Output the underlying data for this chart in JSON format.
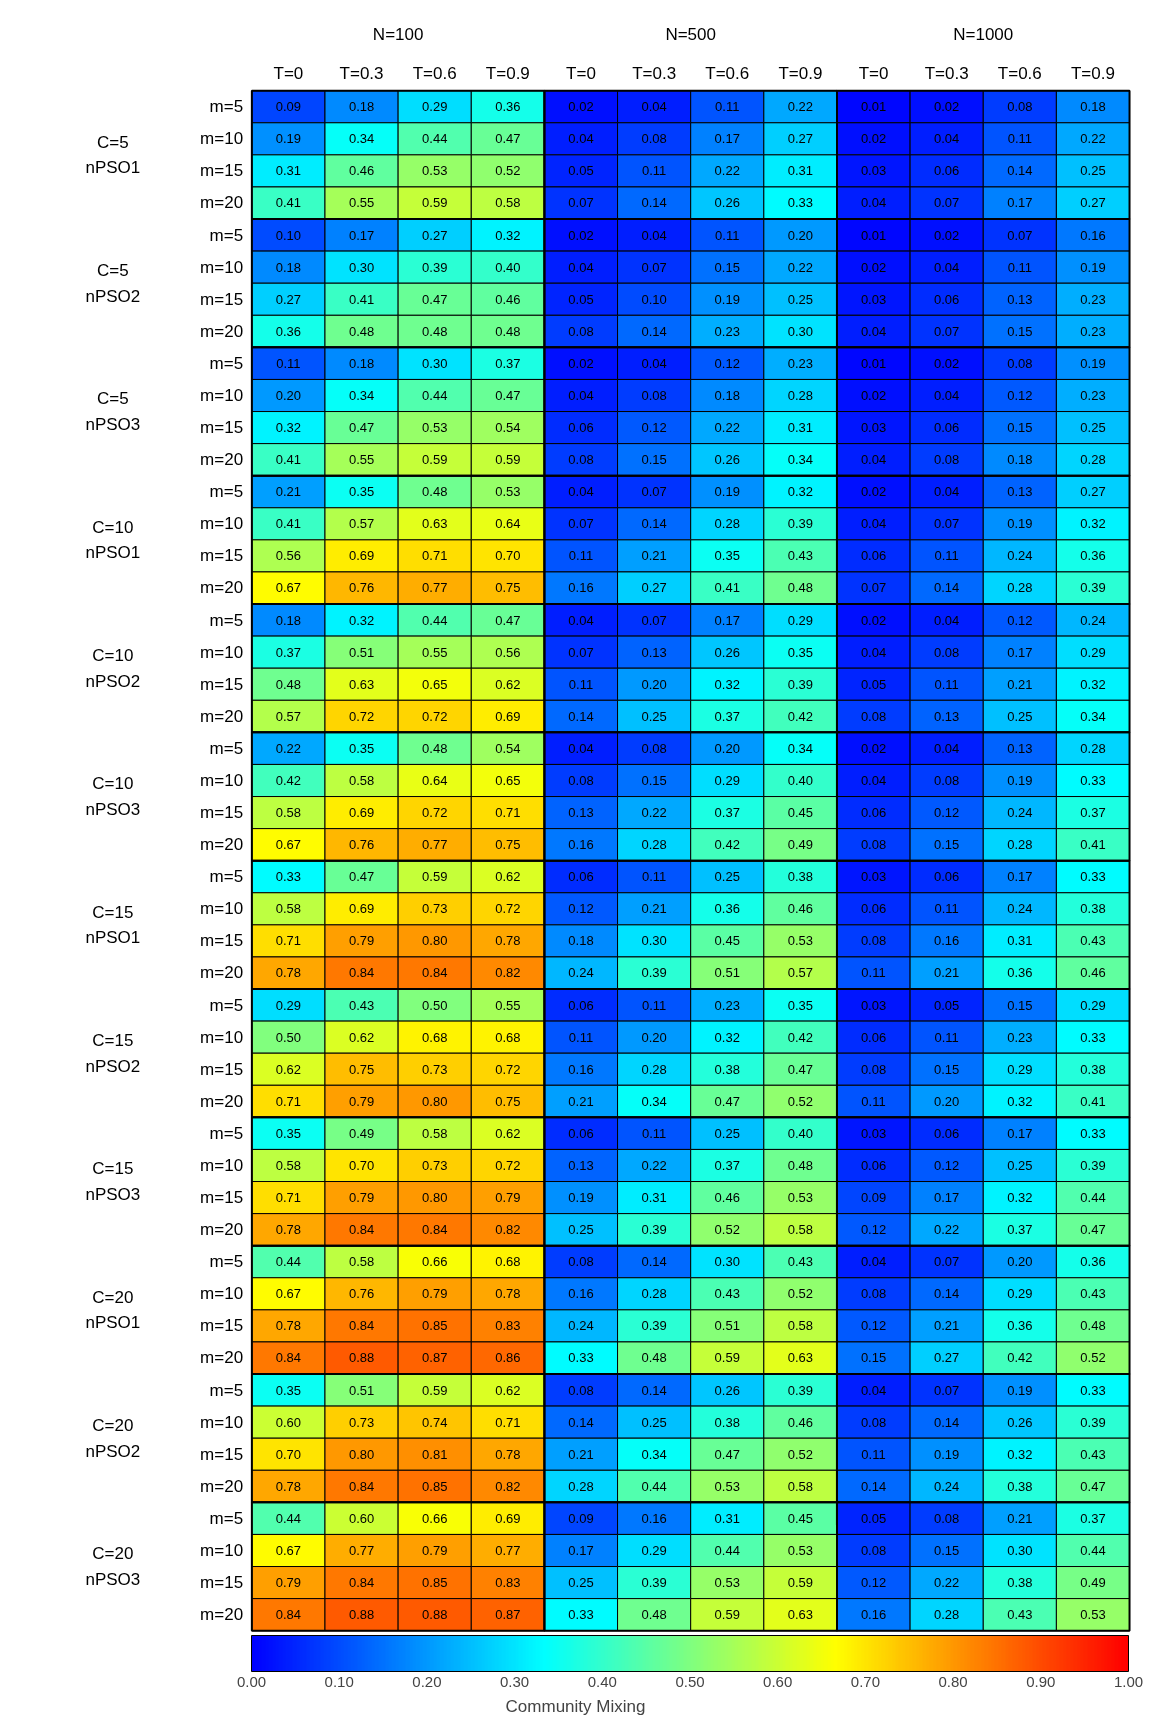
{
  "chart_data": {
    "type": "heatmap",
    "categories": [
      "T=0",
      "T=0.3",
      "T=0.6",
      "T=0.9",
      "T=0",
      "T=0.3",
      "T=0.6",
      "T=0.9",
      "T=0",
      "T=0.3",
      "T=0.6",
      "T=0.9"
    ],
    "y_categories": [
      "m=5",
      "m=10",
      "m=15",
      "m=20",
      "m=5",
      "m=10",
      "m=15",
      "m=20",
      "m=5",
      "m=10",
      "m=15",
      "m=20",
      "m=5",
      "m=10",
      "m=15",
      "m=20",
      "m=5",
      "m=10",
      "m=15",
      "m=20",
      "m=5",
      "m=10",
      "m=15",
      "m=20",
      "m=5",
      "m=10",
      "m=15",
      "m=20",
      "m=5",
      "m=10",
      "m=15",
      "m=20",
      "m=5",
      "m=10",
      "m=15",
      "m=20",
      "m=5",
      "m=10",
      "m=15",
      "m=20",
      "m=5",
      "m=10",
      "m=15",
      "m=20",
      "m=5",
      "m=10",
      "m=15",
      "m=20"
    ],
    "annotations": [
      "N=100",
      "N=500",
      "N=1000",
      "C=5\nnPSO1",
      "C=5\nnPSO2",
      "C=5\nnPSO3",
      "C=10\nnPSO1",
      "C=10\nnPSO2",
      "C=10\nnPSO3",
      "C=15\nnPSO1",
      "C=15\nnPSO2",
      "C=15\nnPSO3",
      "C=20\nnPSO1",
      "C=20\nnPSO2",
      "C=20\nnPSO3"
    ],
    "cells": [
      [
        0.09,
        0.18,
        0.29,
        0.36,
        0.02,
        0.04,
        0.11,
        0.22,
        0.01,
        0.02,
        0.08,
        0.18
      ],
      [
        0.19,
        0.34,
        0.44,
        0.47,
        0.04,
        0.08,
        0.17,
        0.27,
        0.02,
        0.04,
        0.11,
        0.22
      ],
      [
        0.31,
        0.46,
        0.53,
        0.52,
        0.05,
        0.11,
        0.22,
        0.31,
        0.03,
        0.06,
        0.14,
        0.25
      ],
      [
        0.41,
        0.55,
        0.59,
        0.58,
        0.07,
        0.14,
        0.26,
        0.33,
        0.04,
        0.07,
        0.17,
        0.27
      ],
      [
        0.1,
        0.17,
        0.27,
        0.32,
        0.02,
        0.04,
        0.11,
        0.2,
        0.01,
        0.02,
        0.07,
        0.16
      ],
      [
        0.18,
        0.3,
        0.39,
        0.4,
        0.04,
        0.07,
        0.15,
        0.22,
        0.02,
        0.04,
        0.11,
        0.19
      ],
      [
        0.27,
        0.41,
        0.47,
        0.46,
        0.05,
        0.1,
        0.19,
        0.25,
        0.03,
        0.06,
        0.13,
        0.23
      ],
      [
        0.36,
        0.48,
        0.48,
        0.48,
        0.08,
        0.14,
        0.23,
        0.3,
        0.04,
        0.07,
        0.15,
        0.23
      ],
      [
        0.11,
        0.18,
        0.3,
        0.37,
        0.02,
        0.04,
        0.12,
        0.23,
        0.01,
        0.02,
        0.08,
        0.19
      ],
      [
        0.2,
        0.34,
        0.44,
        0.47,
        0.04,
        0.08,
        0.18,
        0.28,
        0.02,
        0.04,
        0.12,
        0.23
      ],
      [
        0.32,
        0.47,
        0.53,
        0.54,
        0.06,
        0.12,
        0.22,
        0.31,
        0.03,
        0.06,
        0.15,
        0.25
      ],
      [
        0.41,
        0.55,
        0.59,
        0.59,
        0.08,
        0.15,
        0.26,
        0.34,
        0.04,
        0.08,
        0.18,
        0.28
      ],
      [
        0.21,
        0.35,
        0.48,
        0.53,
        0.04,
        0.07,
        0.19,
        0.32,
        0.02,
        0.04,
        0.13,
        0.27
      ],
      [
        0.41,
        0.57,
        0.63,
        0.64,
        0.07,
        0.14,
        0.28,
        0.39,
        0.04,
        0.07,
        0.19,
        0.32
      ],
      [
        0.56,
        0.69,
        0.71,
        0.7,
        0.11,
        0.21,
        0.35,
        0.43,
        0.06,
        0.11,
        0.24,
        0.36
      ],
      [
        0.67,
        0.76,
        0.77,
        0.75,
        0.16,
        0.27,
        0.41,
        0.48,
        0.07,
        0.14,
        0.28,
        0.39
      ],
      [
        0.18,
        0.32,
        0.44,
        0.47,
        0.04,
        0.07,
        0.17,
        0.29,
        0.02,
        0.04,
        0.12,
        0.24
      ],
      [
        0.37,
        0.51,
        0.55,
        0.56,
        0.07,
        0.13,
        0.26,
        0.35,
        0.04,
        0.08,
        0.17,
        0.29
      ],
      [
        0.48,
        0.63,
        0.65,
        0.62,
        0.11,
        0.2,
        0.32,
        0.39,
        0.05,
        0.11,
        0.21,
        0.32
      ],
      [
        0.57,
        0.72,
        0.72,
        0.69,
        0.14,
        0.25,
        0.37,
        0.42,
        0.08,
        0.13,
        0.25,
        0.34
      ],
      [
        0.22,
        0.35,
        0.48,
        0.54,
        0.04,
        0.08,
        0.2,
        0.34,
        0.02,
        0.04,
        0.13,
        0.28
      ],
      [
        0.42,
        0.58,
        0.64,
        0.65,
        0.08,
        0.15,
        0.29,
        0.4,
        0.04,
        0.08,
        0.19,
        0.33
      ],
      [
        0.58,
        0.69,
        0.72,
        0.71,
        0.13,
        0.22,
        0.37,
        0.45,
        0.06,
        0.12,
        0.24,
        0.37
      ],
      [
        0.67,
        0.76,
        0.77,
        0.75,
        0.16,
        0.28,
        0.42,
        0.49,
        0.08,
        0.15,
        0.28,
        0.41
      ],
      [
        0.33,
        0.47,
        0.59,
        0.62,
        0.06,
        0.11,
        0.25,
        0.38,
        0.03,
        0.06,
        0.17,
        0.33
      ],
      [
        0.58,
        0.69,
        0.73,
        0.72,
        0.12,
        0.21,
        0.36,
        0.46,
        0.06,
        0.11,
        0.24,
        0.38
      ],
      [
        0.71,
        0.79,
        0.8,
        0.78,
        0.18,
        0.3,
        0.45,
        0.53,
        0.08,
        0.16,
        0.31,
        0.43
      ],
      [
        0.78,
        0.84,
        0.84,
        0.82,
        0.24,
        0.39,
        0.51,
        0.57,
        0.11,
        0.21,
        0.36,
        0.46
      ],
      [
        0.29,
        0.43,
        0.5,
        0.55,
        0.06,
        0.11,
        0.23,
        0.35,
        0.03,
        0.05,
        0.15,
        0.29
      ],
      [
        0.5,
        0.62,
        0.68,
        0.68,
        0.11,
        0.2,
        0.32,
        0.42,
        0.06,
        0.11,
        0.23,
        0.33
      ],
      [
        0.62,
        0.75,
        0.73,
        0.72,
        0.16,
        0.28,
        0.38,
        0.47,
        0.08,
        0.15,
        0.29,
        0.38
      ],
      [
        0.71,
        0.79,
        0.8,
        0.75,
        0.21,
        0.34,
        0.47,
        0.52,
        0.11,
        0.2,
        0.32,
        0.41
      ],
      [
        0.35,
        0.49,
        0.58,
        0.62,
        0.06,
        0.11,
        0.25,
        0.4,
        0.03,
        0.06,
        0.17,
        0.33
      ],
      [
        0.58,
        0.7,
        0.73,
        0.72,
        0.13,
        0.22,
        0.37,
        0.48,
        0.06,
        0.12,
        0.25,
        0.39
      ],
      [
        0.71,
        0.79,
        0.8,
        0.79,
        0.19,
        0.31,
        0.46,
        0.53,
        0.09,
        0.17,
        0.32,
        0.44
      ],
      [
        0.78,
        0.84,
        0.84,
        0.82,
        0.25,
        0.39,
        0.52,
        0.58,
        0.12,
        0.22,
        0.37,
        0.47
      ],
      [
        0.44,
        0.58,
        0.66,
        0.68,
        0.08,
        0.14,
        0.3,
        0.43,
        0.04,
        0.07,
        0.2,
        0.36
      ],
      [
        0.67,
        0.76,
        0.79,
        0.78,
        0.16,
        0.28,
        0.43,
        0.52,
        0.08,
        0.14,
        0.29,
        0.43
      ],
      [
        0.78,
        0.84,
        0.85,
        0.83,
        0.24,
        0.39,
        0.51,
        0.58,
        0.12,
        0.21,
        0.36,
        0.48
      ],
      [
        0.84,
        0.88,
        0.87,
        0.86,
        0.33,
        0.48,
        0.59,
        0.63,
        0.15,
        0.27,
        0.42,
        0.52
      ],
      [
        0.35,
        0.51,
        0.59,
        0.62,
        0.08,
        0.14,
        0.26,
        0.39,
        0.04,
        0.07,
        0.19,
        0.33
      ],
      [
        0.6,
        0.73,
        0.74,
        0.71,
        0.14,
        0.25,
        0.38,
        0.46,
        0.08,
        0.14,
        0.26,
        0.39
      ],
      [
        0.7,
        0.8,
        0.81,
        0.78,
        0.21,
        0.34,
        0.47,
        0.52,
        0.11,
        0.19,
        0.32,
        0.43
      ],
      [
        0.78,
        0.84,
        0.85,
        0.82,
        0.28,
        0.44,
        0.53,
        0.58,
        0.14,
        0.24,
        0.38,
        0.47
      ],
      [
        0.44,
        0.6,
        0.66,
        0.69,
        0.09,
        0.16,
        0.31,
        0.45,
        0.05,
        0.08,
        0.21,
        0.37
      ],
      [
        0.67,
        0.77,
        0.79,
        0.77,
        0.17,
        0.29,
        0.44,
        0.53,
        0.08,
        0.15,
        0.3,
        0.44
      ],
      [
        0.79,
        0.84,
        0.85,
        0.83,
        0.25,
        0.39,
        0.53,
        0.59,
        0.12,
        0.22,
        0.38,
        0.49
      ],
      [
        0.84,
        0.88,
        0.88,
        0.87,
        0.33,
        0.48,
        0.59,
        0.63,
        0.16,
        0.28,
        0.43,
        0.53
      ]
    ],
    "cell_labels": [
      [
        "0.09",
        "0.18",
        "0.29",
        "0.36",
        "0.02",
        "0.04",
        "0.11",
        "0.22",
        "0.01",
        "0.02",
        "0.08",
        "0.18"
      ],
      [
        "0.19",
        "0.34",
        "0.44",
        "0.47",
        "0.04",
        "0.08",
        "0.17",
        "0.27",
        "0.02",
        "0.04",
        "0.11",
        "0.22"
      ],
      [
        "0.31",
        "0.46",
        "0.53",
        "0.52",
        "0.05",
        "0.11",
        "0.22",
        "0.31",
        "0.03",
        "0.06",
        "0.14",
        "0.25"
      ],
      [
        "0.41",
        "0.55",
        "0.59",
        "0.58",
        "0.07",
        "0.14",
        "0.26",
        "0.33",
        "0.04",
        "0.07",
        "0.17",
        "0.27"
      ],
      [
        "0.10",
        "0.17",
        "0.27",
        "0.32",
        "0.02",
        "0.04",
        "0.11",
        "0.20",
        "0.01",
        "0.02",
        "0.07",
        "0.16"
      ],
      [
        "0.18",
        "0.30",
        "0.39",
        "0.40",
        "0.04",
        "0.07",
        "0.15",
        "0.22",
        "0.02",
        "0.04",
        "0.11",
        "0.19"
      ],
      [
        "0.27",
        "0.41",
        "0.47",
        "0.46",
        "0.05",
        "0.10",
        "0.19",
        "0.25",
        "0.03",
        "0.06",
        "0.13",
        "0.23"
      ],
      [
        "0.36",
        "0.48",
        "0.48",
        "0.48",
        "0.08",
        "0.14",
        "0.23",
        "0.30",
        "0.04",
        "0.07",
        "0.15",
        "0.23"
      ],
      [
        "0.11",
        "0.18",
        "0.30",
        "0.37",
        "0.02",
        "0.04",
        "0.12",
        "0.23",
        "0.01",
        "0.02",
        "0.08",
        "0.19"
      ],
      [
        "0.20",
        "0.34",
        "0.44",
        "0.47",
        "0.04",
        "0.08",
        "0.18",
        "0.28",
        "0.02",
        "0.04",
        "0.12",
        "0.23"
      ],
      [
        "0.32",
        "0.47",
        "0.53",
        "0.54",
        "0.06",
        "0.12",
        "0.22",
        "0.31",
        "0.03",
        "0.06",
        "0.15",
        "0.25"
      ],
      [
        "0.41",
        "0.55",
        "0.59",
        "0.59",
        "0.08",
        "0.15",
        "0.26",
        "0.34",
        "0.04",
        "0.08",
        "0.18",
        "0.28"
      ],
      [
        "0.21",
        "0.35",
        "0.48",
        "0.53",
        "0.04",
        "0.07",
        "0.19",
        "0.32",
        "0.02",
        "0.04",
        "0.13",
        "0.27"
      ],
      [
        "0.41",
        "0.57",
        "0.63",
        "0.64",
        "0.07",
        "0.14",
        "0.28",
        "0.39",
        "0.04",
        "0.07",
        "0.19",
        "0.32"
      ],
      [
        "0.56",
        "0.69",
        "0.71",
        "0.70",
        "0.11",
        "0.21",
        "0.35",
        "0.43",
        "0.06",
        "0.11",
        "0.24",
        "0.36"
      ],
      [
        "0.67",
        "0.76",
        "0.77",
        "0.75",
        "0.16",
        "0.27",
        "0.41",
        "0.48",
        "0.07",
        "0.14",
        "0.28",
        "0.39"
      ],
      [
        "0.18",
        "0.32",
        "0.44",
        "0.47",
        "0.04",
        "0.07",
        "0.17",
        "0.29",
        "0.02",
        "0.04",
        "0.12",
        "0.24"
      ],
      [
        "0.37",
        "0.51",
        "0.55",
        "0.56",
        "0.07",
        "0.13",
        "0.26",
        "0.35",
        "0.04",
        "0.08",
        "0.17",
        "0.29"
      ],
      [
        "0.48",
        "0.63",
        "0.65",
        "0.62",
        "0.11",
        "0.20",
        "0.32",
        "0.39",
        "0.05",
        "0.11",
        "0.21",
        "0.32"
      ],
      [
        "0.57",
        "0.72",
        "0.72",
        "0.69",
        "0.14",
        "0.25",
        "0.37",
        "0.42",
        "0.08",
        "0.13",
        "0.25",
        "0.34"
      ],
      [
        "0.22",
        "0.35",
        "0.48",
        "0.54",
        "0.04",
        "0.08",
        "0.20",
        "0.34",
        "0.02",
        "0.04",
        "0.13",
        "0.28"
      ],
      [
        "0.42",
        "0.58",
        "0.64",
        "0.65",
        "0.08",
        "0.15",
        "0.29",
        "0.40",
        "0.04",
        "0.08",
        "0.19",
        "0.33"
      ],
      [
        "0.58",
        "0.69",
        "0.72",
        "0.71",
        "0.13",
        "0.22",
        "0.37",
        "0.45",
        "0.06",
        "0.12",
        "0.24",
        "0.37"
      ],
      [
        "0.67",
        "0.76",
        "0.77",
        "0.75",
        "0.16",
        "0.28",
        "0.42",
        "0.49",
        "0.08",
        "0.15",
        "0.28",
        "0.41"
      ],
      [
        "0.33",
        "0.47",
        "0.59",
        "0.62",
        "0.06",
        "0.11",
        "0.25",
        "0.38",
        "0.03",
        "0.06",
        "0.17",
        "0.33"
      ],
      [
        "0.58",
        "0.69",
        "0.73",
        "0.72",
        "0.12",
        "0.21",
        "0.36",
        "0.46",
        "0.06",
        "0.11",
        "0.24",
        "0.38"
      ],
      [
        "0.71",
        "0.79",
        "0.80",
        "0.78",
        "0.18",
        "0.30",
        "0.45",
        "0.53",
        "0.08",
        "0.16",
        "0.31",
        "0.43"
      ],
      [
        "0.78",
        "0.84",
        "0.84",
        "0.82",
        "0.24",
        "0.39",
        "0.51",
        "0.57",
        "0.11",
        "0.21",
        "0.36",
        "0.46"
      ],
      [
        "0.29",
        "0.43",
        "0.50",
        "0.55",
        "0.06",
        "0.11",
        "0.23",
        "0.35",
        "0.03",
        "0.05",
        "0.15",
        "0.29"
      ],
      [
        "0.50",
        "0.62",
        "0.68",
        "0.68",
        "0.11",
        "0.20",
        "0.32",
        "0.42",
        "0.06",
        "0.11",
        "0.23",
        "0.33"
      ],
      [
        "0.62",
        "0.75",
        "0.73",
        "0.72",
        "0.16",
        "0.28",
        "0.38",
        "0.47",
        "0.08",
        "0.15",
        "0.29",
        "0.38"
      ],
      [
        "0.71",
        "0.79",
        "0.80",
        "0.75",
        "0.21",
        "0.34",
        "0.47",
        "0.52",
        "0.11",
        "0.20",
        "0.32",
        "0.41"
      ],
      [
        "0.35",
        "0.49",
        "0.58",
        "0.62",
        "0.06",
        "0.11",
        "0.25",
        "0.40",
        "0.03",
        "0.06",
        "0.17",
        "0.33"
      ],
      [
        "0.58",
        "0.70",
        "0.73",
        "0.72",
        "0.13",
        "0.22",
        "0.37",
        "0.48",
        "0.06",
        "0.12",
        "0.25",
        "0.39"
      ],
      [
        "0.71",
        "0.79",
        "0.80",
        "0.79",
        "0.19",
        "0.31",
        "0.46",
        "0.53",
        "0.09",
        "0.17",
        "0.32",
        "0.44"
      ],
      [
        "0.78",
        "0.84",
        "0.84",
        "0.82",
        "0.25",
        "0.39",
        "0.52",
        "0.58",
        "0.12",
        "0.22",
        "0.37",
        "0.47"
      ],
      [
        "0.44",
        "0.58",
        "0.66",
        "0.68",
        "0.08",
        "0.14",
        "0.30",
        "0.43",
        "0.04",
        "0.07",
        "0.20",
        "0.36"
      ],
      [
        "0.67",
        "0.76",
        "0.79",
        "0.78",
        "0.16",
        "0.28",
        "0.43",
        "0.52",
        "0.08",
        "0.14",
        "0.29",
        "0.43"
      ],
      [
        "0.78",
        "0.84",
        "0.85",
        "0.83",
        "0.24",
        "0.39",
        "0.51",
        "0.58",
        "0.12",
        "0.21",
        "0.36",
        "0.48"
      ],
      [
        "0.84",
        "0.88",
        "0.87",
        "0.86",
        "0.33",
        "0.48",
        "0.59",
        "0.63",
        "0.15",
        "0.27",
        "0.42",
        "0.52"
      ],
      [
        "0.35",
        "0.51",
        "0.59",
        "0.62",
        "0.08",
        "0.14",
        "0.26",
        "0.39",
        "0.04",
        "0.07",
        "0.19",
        "0.33"
      ],
      [
        "0.60",
        "0.73",
        "0.74",
        "0.71",
        "0.14",
        "0.25",
        "0.38",
        "0.46",
        "0.08",
        "0.14",
        "0.26",
        "0.39"
      ],
      [
        "0.70",
        "0.80",
        "0.81",
        "0.78",
        "0.21",
        "0.34",
        "0.47",
        "0.52",
        "0.11",
        "0.19",
        "0.32",
        "0.43"
      ],
      [
        "0.78",
        "0.84",
        "0.85",
        "0.82",
        "0.28",
        "0.44",
        "0.53",
        "0.58",
        "0.14",
        "0.24",
        "0.38",
        "0.47"
      ],
      [
        "0.44",
        "0.60",
        "0.66",
        "0.69",
        "0.09",
        "0.16",
        "0.31",
        "0.45",
        "0.05",
        "0.08",
        "0.21",
        "0.37"
      ],
      [
        "0.67",
        "0.77",
        "0.79",
        "0.77",
        "0.17",
        "0.29",
        "0.44",
        "0.53",
        "0.08",
        "0.15",
        "0.30",
        "0.44"
      ],
      [
        "0.79",
        "0.84",
        "0.85",
        "0.83",
        "0.25",
        "0.39",
        "0.53",
        "0.59",
        "0.12",
        "0.22",
        "0.38",
        "0.49"
      ],
      [
        "0.84",
        "0.88",
        "0.88",
        "0.87",
        "0.33",
        "0.48",
        "0.59",
        "0.63",
        "0.16",
        "0.28",
        "0.43",
        "0.53"
      ]
    ],
    "clim": [
      0,
      1
    ],
    "cticks": [
      {
        "value": 0,
        "label": "0.00"
      },
      {
        "value": 0.1,
        "label": "0.10"
      },
      {
        "value": 0.2,
        "label": "0.20"
      },
      {
        "value": 0.3,
        "label": "0.30"
      },
      {
        "value": 0.4,
        "label": "0.40"
      },
      {
        "value": 0.5,
        "label": "0.50"
      },
      {
        "value": 0.6,
        "label": "0.60"
      },
      {
        "value": 0.7,
        "label": "0.70"
      },
      {
        "value": 0.8,
        "label": "0.80"
      },
      {
        "value": 0.9,
        "label": "0.90"
      },
      {
        "value": 1,
        "label": "1.00"
      }
    ],
    "clabel": "Community Mixing"
  }
}
